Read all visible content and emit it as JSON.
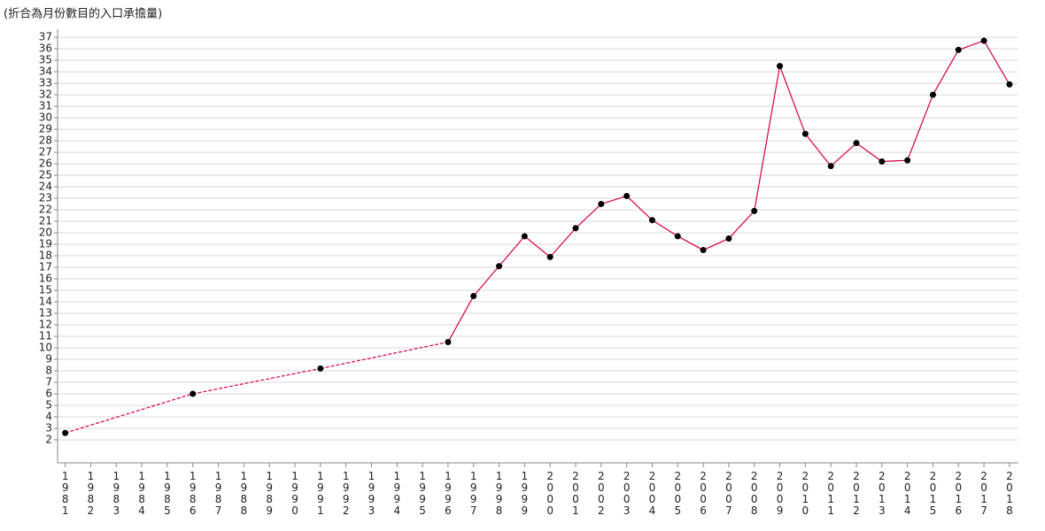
{
  "chart_data": {
    "type": "line",
    "title": "(折合為月份數目的入口承擔量)",
    "x": [
      1981,
      1986,
      1991,
      1996,
      1997,
      1998,
      1999,
      2000,
      2001,
      2002,
      2003,
      2004,
      2005,
      2006,
      2007,
      2008,
      2009,
      2010,
      2011,
      2012,
      2013,
      2014,
      2015,
      2016,
      2017,
      2018
    ],
    "series": [
      {
        "color": "#d4003c",
        "values": [
          2.6,
          6.0,
          8.2,
          10.5,
          14.5,
          17.1,
          19.7,
          17.9,
          20.4,
          22.5,
          23.2,
          21.1,
          19.7,
          18.5,
          19.5,
          21.9,
          34.5,
          28.6,
          25.8,
          27.8,
          26.2,
          26.3,
          32.0,
          35.9,
          36.7,
          32.9
        ]
      }
    ],
    "marker_color": "#000000",
    "xlim": [
      1980.7,
      2018.35
    ],
    "xticks": [
      1981,
      1982,
      1983,
      1984,
      1985,
      1986,
      1987,
      1988,
      1989,
      1990,
      1991,
      1992,
      1993,
      1994,
      1995,
      1996,
      1997,
      1998,
      1999,
      2000,
      2001,
      2002,
      2003,
      2004,
      2005,
      2006,
      2007,
      2008,
      2009,
      2010,
      2011,
      2012,
      2013,
      2014,
      2015,
      2016,
      2017,
      2018
    ],
    "ylim": [
      0,
      37.7
    ],
    "yticks": [
      2,
      3,
      4,
      5,
      6,
      7,
      8,
      9,
      10,
      11,
      12,
      13,
      14,
      15,
      16,
      17,
      18,
      19,
      20,
      21,
      22,
      23,
      24,
      25,
      26,
      27,
      28,
      29,
      30,
      31,
      32,
      33,
      34,
      35,
      36,
      37
    ],
    "grid": true
  }
}
